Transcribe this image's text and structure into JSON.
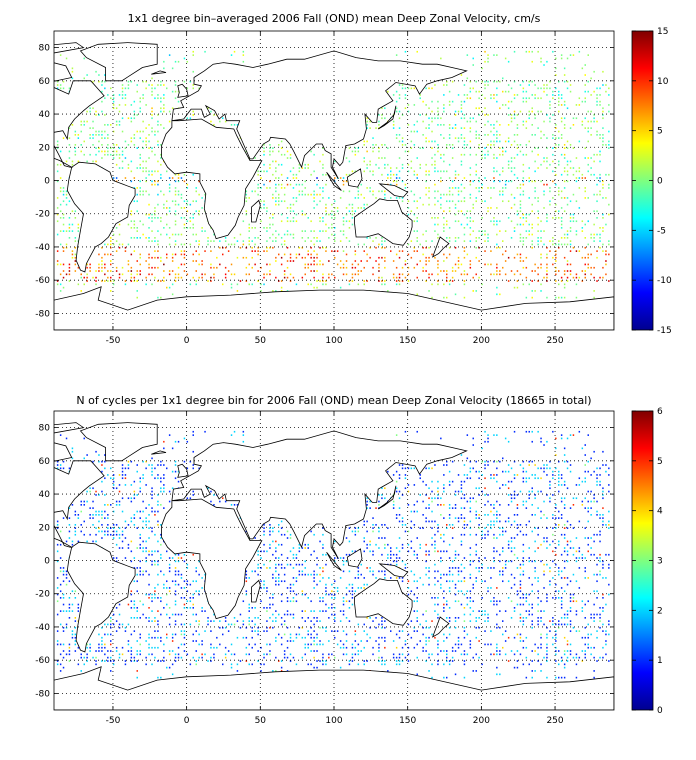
{
  "panels": [
    {
      "title": "1x1 degree bin–averaged 2006 Fall (OND) mean Deep Zonal Velocity, cm/s",
      "colorbar_ticks": [
        "15",
        "10",
        "5",
        "0",
        "-5",
        "-10",
        "-15"
      ],
      "colorbar_range": [
        -15,
        15
      ],
      "colormap": "jet",
      "kind": "velocity"
    },
    {
      "title": "N of cycles per 1x1 degree bin for 2006 Fall (OND) mean Deep Zonal Velocity (18665 in total)",
      "colorbar_ticks": [
        "6",
        "5",
        "4",
        "3",
        "2",
        "1",
        "0"
      ],
      "colorbar_range": [
        0,
        6
      ],
      "colormap": "jet",
      "kind": "count"
    }
  ],
  "x_ticks": [
    "-50",
    "0",
    "50",
    "100",
    "150",
    "200",
    "250"
  ],
  "y_ticks": [
    "80",
    "60",
    "40",
    "20",
    "0",
    "-20",
    "-40",
    "-60",
    "-80"
  ],
  "lon_range": [
    -90,
    290
  ],
  "lat_range": [
    -90,
    90
  ],
  "grid": true
}
